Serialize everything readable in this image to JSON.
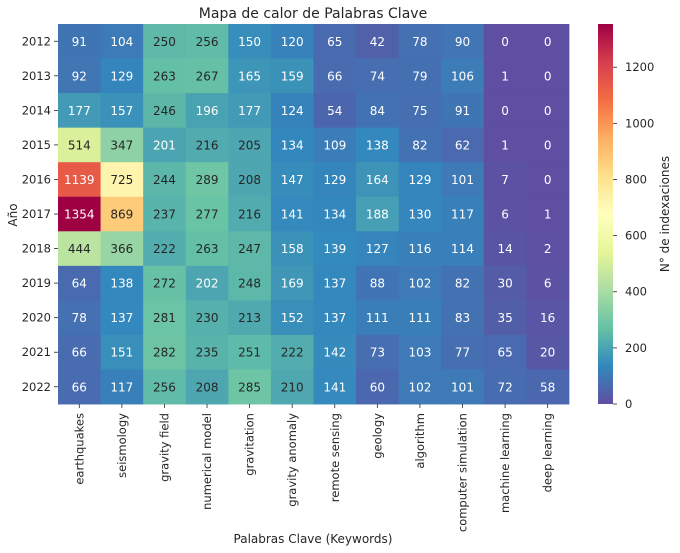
{
  "chart_data": {
    "type": "heatmap",
    "title": "Mapa de calor de Palabras Clave",
    "xlabel": "Palabras Clave (Keywords)",
    "ylabel": "Año",
    "colorbar_label": "N° de indexaciones",
    "colorbar_range": [
      0,
      1354
    ],
    "colorbar_ticks": [
      0,
      200,
      400,
      600,
      800,
      1000,
      1200
    ],
    "colormap": "Spectral_r",
    "years": [
      "2012",
      "2013",
      "2014",
      "2015",
      "2016",
      "2017",
      "2018",
      "2019",
      "2020",
      "2021",
      "2022"
    ],
    "keywords": [
      "earthquakes",
      "seismology",
      "gravity field",
      "numerical model",
      "gravitation",
      "gravity anomaly",
      "remote sensing",
      "geology",
      "algorithm",
      "computer simulation",
      "machine learning",
      "deep learning"
    ],
    "values": [
      [
        91,
        104,
        250,
        256,
        150,
        120,
        65,
        42,
        78,
        90,
        0,
        0
      ],
      [
        92,
        129,
        263,
        267,
        165,
        159,
        66,
        74,
        79,
        106,
        1,
        0
      ],
      [
        177,
        157,
        246,
        196,
        177,
        124,
        54,
        84,
        75,
        91,
        0,
        0
      ],
      [
        514,
        347,
        201,
        216,
        205,
        134,
        109,
        138,
        82,
        62,
        1,
        0
      ],
      [
        1139,
        725,
        244,
        289,
        208,
        147,
        129,
        164,
        129,
        101,
        7,
        0
      ],
      [
        1354,
        869,
        237,
        277,
        216,
        141,
        134,
        188,
        130,
        117,
        6,
        1
      ],
      [
        444,
        366,
        222,
        263,
        247,
        158,
        139,
        127,
        116,
        114,
        14,
        2
      ],
      [
        64,
        138,
        272,
        202,
        248,
        169,
        137,
        88,
        102,
        82,
        30,
        6
      ],
      [
        78,
        137,
        281,
        230,
        213,
        152,
        137,
        111,
        111,
        83,
        35,
        16
      ],
      [
        66,
        151,
        282,
        235,
        251,
        222,
        142,
        73,
        103,
        77,
        65,
        20
      ],
      [
        66,
        117,
        256,
        208,
        285,
        210,
        141,
        60,
        102,
        101,
        72,
        58
      ]
    ]
  }
}
